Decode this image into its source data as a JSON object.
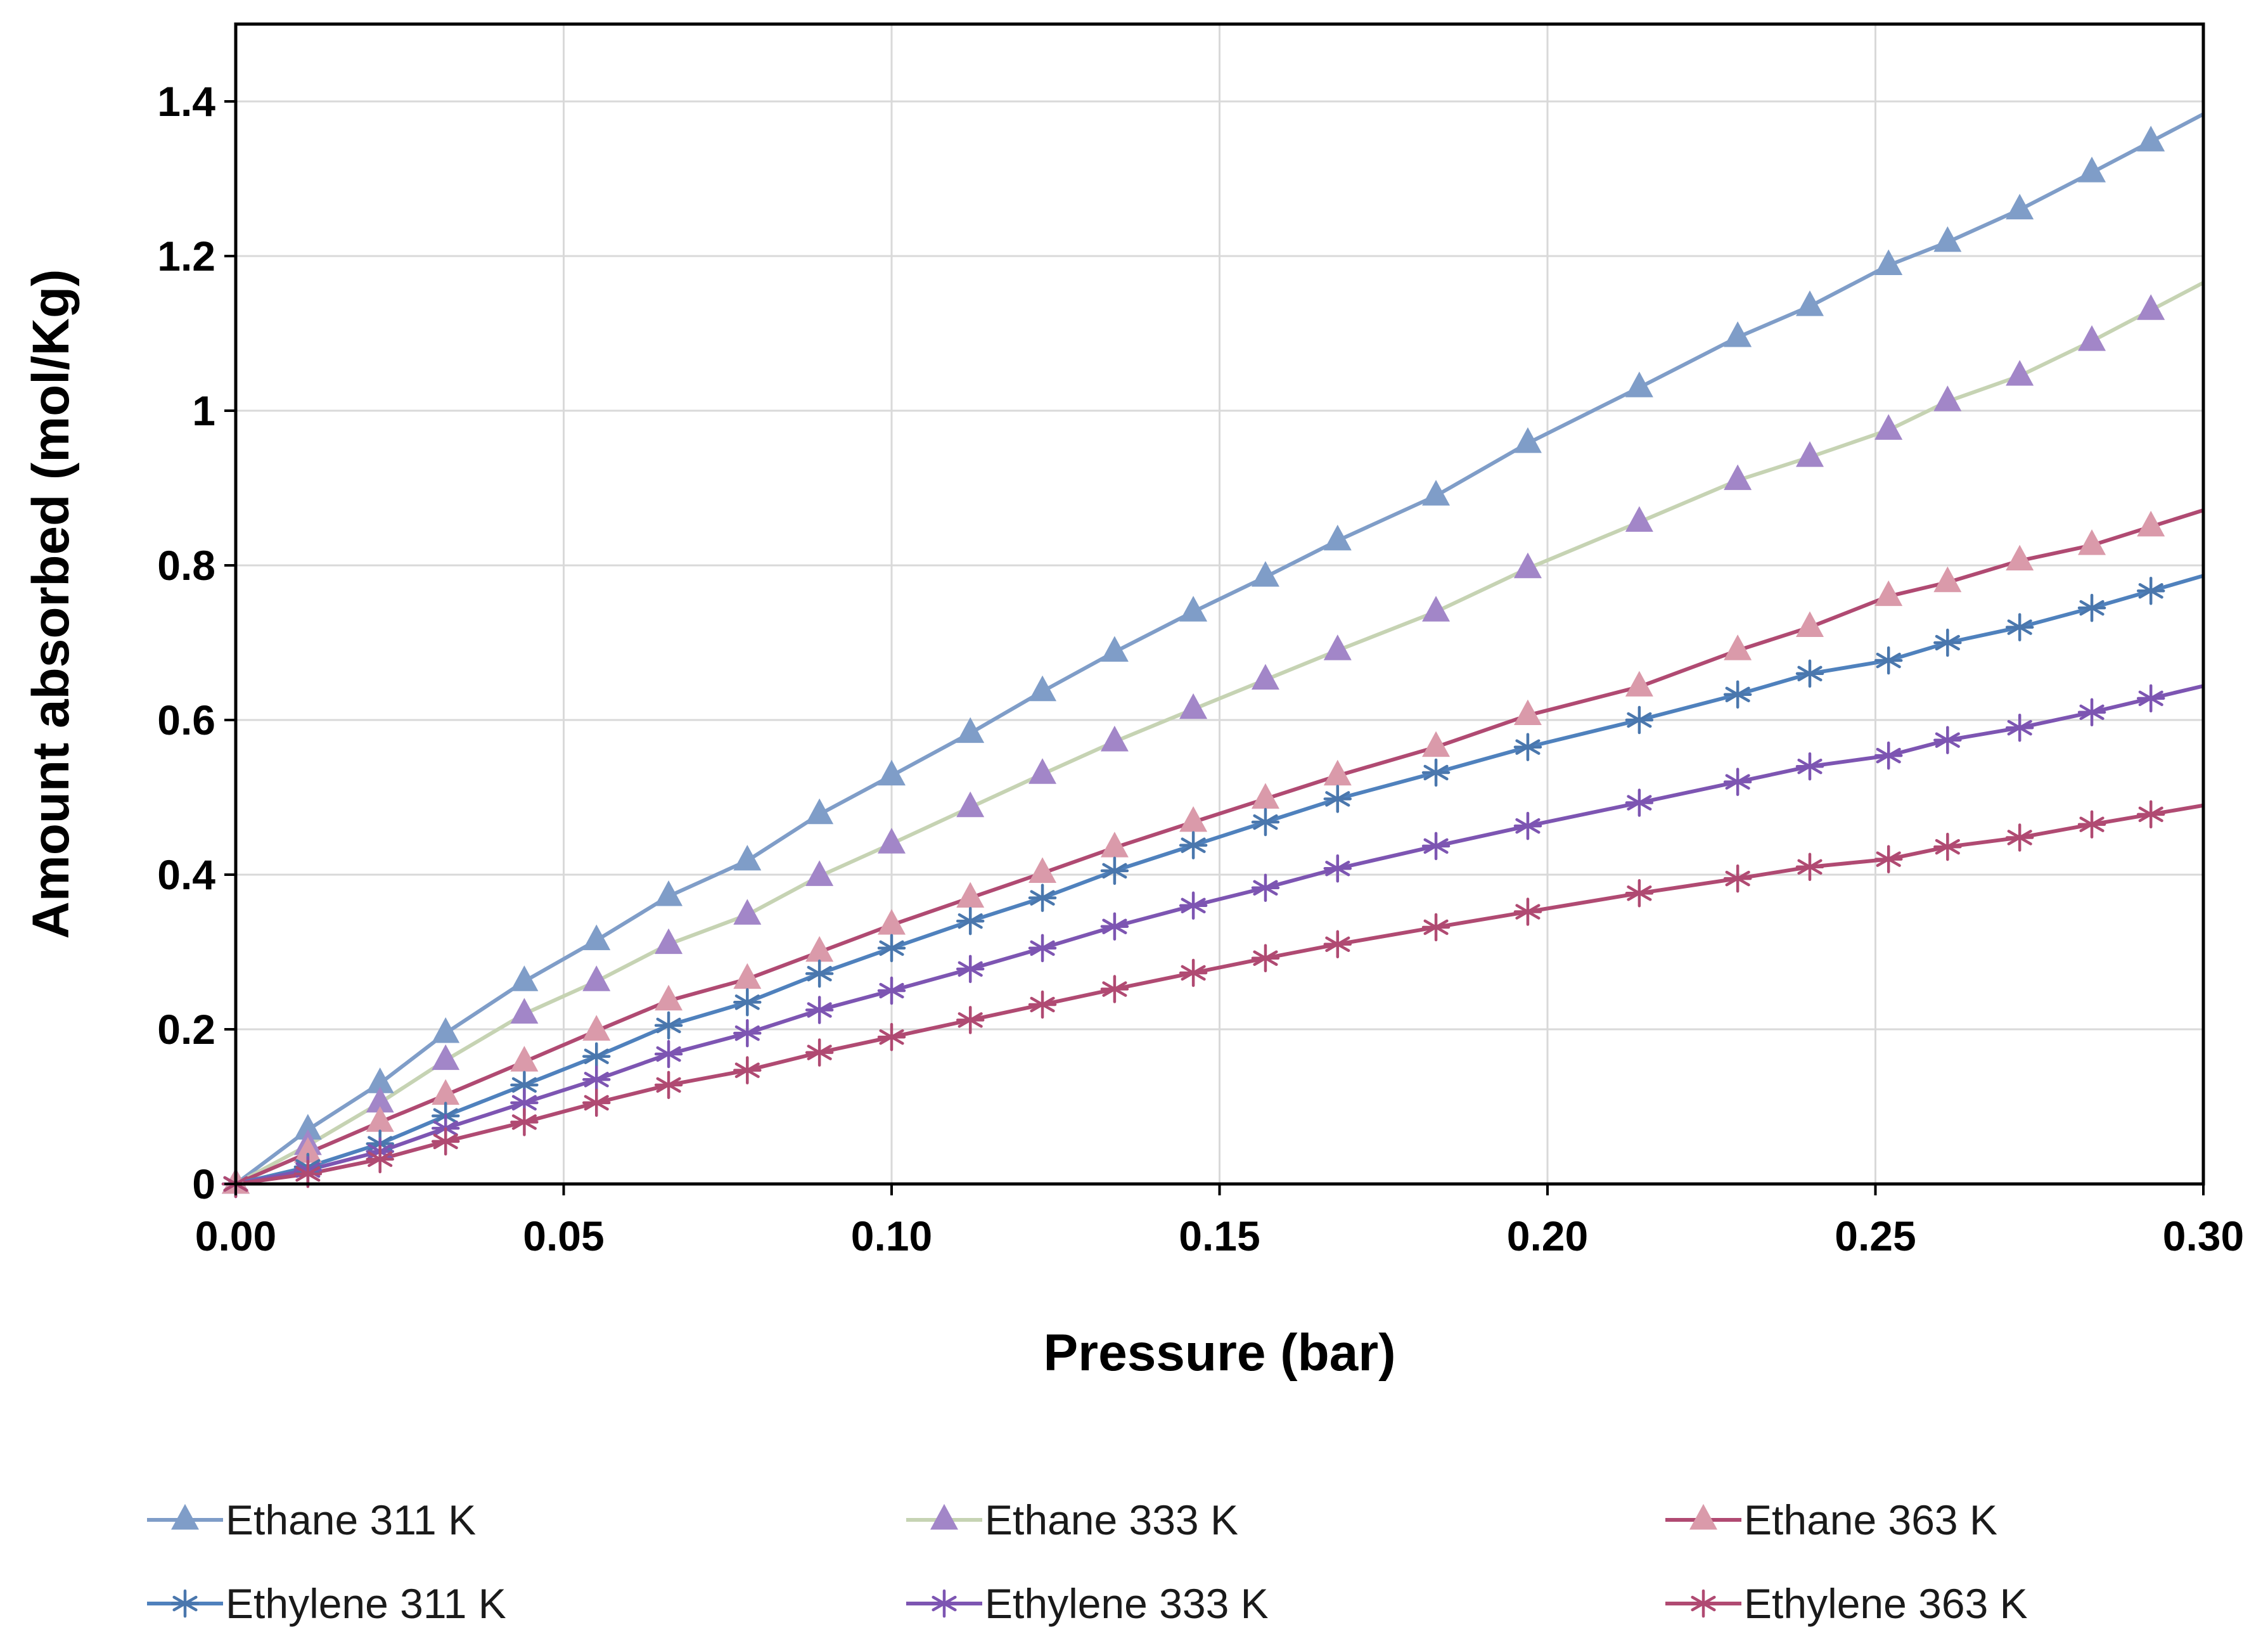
{
  "chart_data": {
    "type": "line",
    "title": "",
    "xlabel": "Pressure (bar)",
    "ylabel": "Amount absorbed (mol/Kg)",
    "xlim": [
      0,
      0.3
    ],
    "ylim": [
      0,
      1.5
    ],
    "grid": true,
    "legend_position": "bottom",
    "xticks": [
      0.0,
      0.05,
      0.1,
      0.15,
      0.2,
      0.25,
      0.3
    ],
    "xtick_labels": [
      "0.00",
      "0.05",
      "0.10",
      "0.15",
      "0.20",
      "0.25",
      "0.30"
    ],
    "yticks": [
      0,
      0.2,
      0.4,
      0.6,
      0.8,
      1.0,
      1.2,
      1.4
    ],
    "ytick_labels": [
      "0",
      "0.2",
      "0.4",
      "0.6",
      "0.8",
      "1",
      "1.2",
      "1.4"
    ],
    "x": [
      0.0,
      0.011,
      0.022,
      0.032,
      0.044,
      0.055,
      0.066,
      0.078,
      0.089,
      0.1,
      0.112,
      0.123,
      0.134,
      0.146,
      0.157,
      0.168,
      0.183,
      0.197,
      0.214,
      0.229,
      0.24,
      0.252,
      0.261,
      0.272,
      0.283,
      0.292
    ],
    "series": [
      {
        "name": "Ethane 311 K",
        "marker": "triangle",
        "line_color": "#7f9dc8",
        "marker_color": "#7f9dc8",
        "values": [
          0.0,
          0.07,
          0.13,
          0.195,
          0.262,
          0.315,
          0.372,
          0.418,
          0.478,
          0.528,
          0.583,
          0.637,
          0.688,
          0.74,
          0.785,
          0.832,
          0.89,
          0.958,
          1.03,
          1.095,
          1.135,
          1.188,
          1.218,
          1.26,
          1.308,
          1.348
        ]
      },
      {
        "name": "Ethane 333 K",
        "marker": "triangle",
        "line_color": "#c6d3b3",
        "marker_color": "#a286c8",
        "values": [
          0.0,
          0.05,
          0.105,
          0.16,
          0.22,
          0.262,
          0.31,
          0.348,
          0.398,
          0.44,
          0.487,
          0.53,
          0.572,
          0.614,
          0.652,
          0.69,
          0.74,
          0.796,
          0.856,
          0.91,
          0.94,
          0.975,
          1.012,
          1.045,
          1.09,
          1.13
        ]
      },
      {
        "name": "Ethane 363 K",
        "marker": "triangle",
        "line_color": "#b04a72",
        "marker_color": "#da9aaa",
        "values": [
          0.0,
          0.04,
          0.08,
          0.115,
          0.158,
          0.198,
          0.237,
          0.265,
          0.3,
          0.335,
          0.37,
          0.402,
          0.435,
          0.468,
          0.498,
          0.528,
          0.565,
          0.606,
          0.643,
          0.69,
          0.72,
          0.76,
          0.778,
          0.806,
          0.826,
          0.85
        ]
      },
      {
        "name": "Ethylene 311 K",
        "marker": "star",
        "line_color": "#4f81bd",
        "marker_color": "#4a77ad",
        "values": [
          0.0,
          0.022,
          0.052,
          0.088,
          0.128,
          0.165,
          0.205,
          0.235,
          0.272,
          0.305,
          0.34,
          0.37,
          0.405,
          0.438,
          0.468,
          0.498,
          0.532,
          0.565,
          0.6,
          0.633,
          0.66,
          0.677,
          0.7,
          0.72,
          0.745,
          0.767
        ]
      },
      {
        "name": "Ethylene 333 K",
        "marker": "star",
        "line_color": "#7d55b2",
        "marker_color": "#7d55b2",
        "values": [
          0.0,
          0.018,
          0.042,
          0.072,
          0.105,
          0.135,
          0.168,
          0.195,
          0.225,
          0.25,
          0.278,
          0.305,
          0.333,
          0.36,
          0.383,
          0.408,
          0.437,
          0.463,
          0.493,
          0.52,
          0.54,
          0.554,
          0.574,
          0.59,
          0.61,
          0.628
        ]
      },
      {
        "name": "Ethylene 363 K",
        "marker": "star",
        "line_color": "#b04a72",
        "marker_color": "#b04a72",
        "values": [
          0.0,
          0.013,
          0.032,
          0.055,
          0.08,
          0.105,
          0.128,
          0.147,
          0.17,
          0.19,
          0.212,
          0.232,
          0.252,
          0.273,
          0.292,
          0.31,
          0.332,
          0.352,
          0.376,
          0.395,
          0.41,
          0.42,
          0.436,
          0.448,
          0.465,
          0.478
        ]
      }
    ]
  }
}
